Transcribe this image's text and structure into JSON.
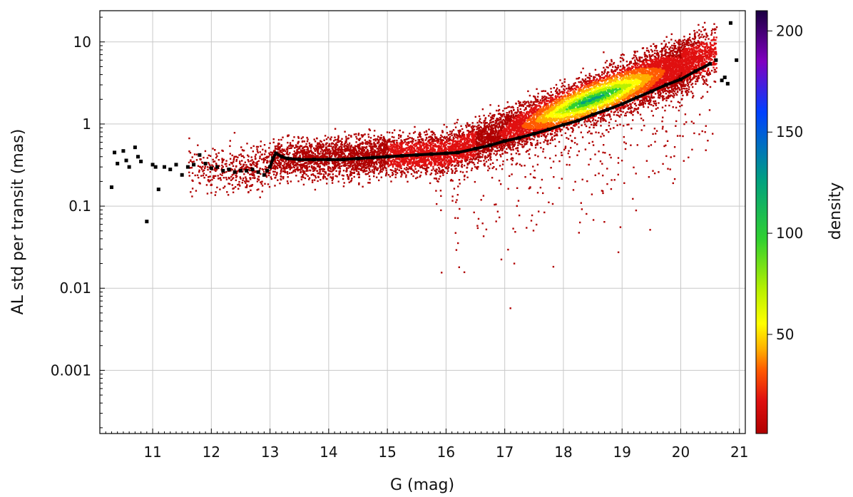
{
  "chart_data": {
    "type": "heatmap",
    "title": "",
    "xlabel": "G (mag)",
    "ylabel": "AL std per transit (mas)",
    "xlim": [
      10.1,
      21.1
    ],
    "ylim": [
      0.00017,
      24
    ],
    "y_scale": "log",
    "grid": true,
    "x_ticks": [
      11,
      12,
      13,
      14,
      15,
      16,
      17,
      18,
      19,
      20,
      21
    ],
    "x_tick_labels": [
      "11",
      "12",
      "13",
      "14",
      "15",
      "16",
      "17",
      "18",
      "19",
      "20",
      "21"
    ],
    "y_ticks": [
      0.001,
      0.01,
      0.1,
      1,
      10
    ],
    "y_tick_labels": [
      "0.001",
      "0.01",
      "0.1",
      "1",
      "10"
    ],
    "colorbar": {
      "label": "density",
      "range": [
        1,
        210
      ],
      "ticks": [
        50,
        100,
        150,
        200
      ],
      "tick_labels": [
        "50",
        "100",
        "150",
        "200"
      ],
      "colormap": [
        "#b00000",
        "#e01010",
        "#ff5a00",
        "#ffb000",
        "#ffff00",
        "#b8f000",
        "#30d030",
        "#00a080",
        "#0040ff",
        "#8000c0",
        "#1a0040"
      ]
    },
    "series": [
      {
        "role": "median",
        "x": [
          10.3,
          10.35,
          10.4,
          10.5,
          10.55,
          10.6,
          10.7,
          10.75,
          10.8,
          10.9,
          11.0,
          11.05,
          11.1,
          11.2,
          11.3,
          11.4,
          11.5,
          11.6,
          11.7,
          11.8,
          11.9,
          12.0,
          12.1,
          12.2,
          12.3,
          12.4,
          12.5,
          12.6,
          12.7,
          12.8,
          12.9,
          12.95,
          13.0,
          13.05,
          13.1,
          13.2,
          13.3,
          13.5,
          13.75,
          14.0,
          14.25,
          14.5,
          14.75,
          15.0,
          15.25,
          15.5,
          15.75,
          16.0,
          16.2,
          16.5,
          16.75,
          17.0,
          17.25,
          17.5,
          17.75,
          18.0,
          18.25,
          18.5,
          18.75,
          19.0,
          19.25,
          19.5,
          19.75,
          20.0,
          20.25,
          20.5,
          20.6,
          20.7,
          20.75,
          20.8,
          20.85,
          20.95
        ],
        "y": [
          0.17,
          0.45,
          0.33,
          0.47,
          0.36,
          0.3,
          0.52,
          0.4,
          0.35,
          0.065,
          0.32,
          0.3,
          0.16,
          0.3,
          0.28,
          0.32,
          0.24,
          0.3,
          0.32,
          0.42,
          0.33,
          0.29,
          0.3,
          0.27,
          0.28,
          0.26,
          0.27,
          0.27,
          0.28,
          0.26,
          0.24,
          0.27,
          0.3,
          0.38,
          0.44,
          0.4,
          0.38,
          0.37,
          0.37,
          0.37,
          0.37,
          0.38,
          0.39,
          0.4,
          0.41,
          0.42,
          0.43,
          0.44,
          0.45,
          0.5,
          0.55,
          0.62,
          0.68,
          0.76,
          0.86,
          0.98,
          1.1,
          1.3,
          1.5,
          1.75,
          2.1,
          2.5,
          3.0,
          3.5,
          4.4,
          5.4,
          6.0,
          3.4,
          3.7,
          3.1,
          17.0,
          6.0
        ]
      }
    ]
  }
}
